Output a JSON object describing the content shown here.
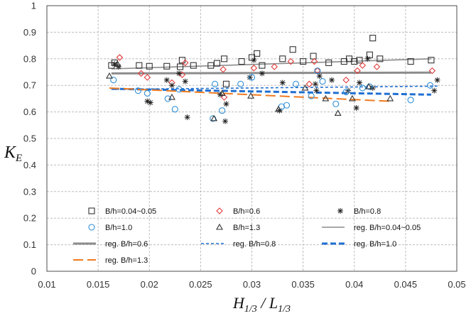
{
  "chart_data": {
    "type": "scatter",
    "xlim": [
      0.01,
      0.05
    ],
    "ylim": [
      0,
      1
    ],
    "xticks": [
      "0.01",
      "0.015",
      "0.02",
      "0.025",
      "0.03",
      "0.035",
      "0.04",
      "0.045",
      "0.05"
    ],
    "yticks": [
      "0",
      "0.1",
      "0.2",
      "0.3",
      "0.4",
      "0.5",
      "0.6",
      "0.7",
      "0.8",
      "0.9",
      "1"
    ],
    "xlabel": {
      "main": "H",
      "sub1": "1/3",
      "mid": " / L",
      "sub2": "1/3"
    },
    "ylabel": {
      "main": "K",
      "sub": "E"
    },
    "grid": true,
    "legend_position": "inside-bottom",
    "series": [
      {
        "name": "B/h=0.04~0.05",
        "marker": "square",
        "color": "#333333",
        "points": [
          [
            0.0163,
            0.775
          ],
          [
            0.0166,
            0.785
          ],
          [
            0.019,
            0.775
          ],
          [
            0.02,
            0.772
          ],
          [
            0.0217,
            0.772
          ],
          [
            0.023,
            0.77
          ],
          [
            0.0232,
            0.795
          ],
          [
            0.0243,
            0.775
          ],
          [
            0.026,
            0.775
          ],
          [
            0.0266,
            0.783
          ],
          [
            0.0273,
            0.8
          ],
          [
            0.0275,
            0.705
          ],
          [
            0.029,
            0.79
          ],
          [
            0.03,
            0.805
          ],
          [
            0.0305,
            0.82
          ],
          [
            0.031,
            0.775
          ],
          [
            0.033,
            0.8
          ],
          [
            0.034,
            0.835
          ],
          [
            0.035,
            0.79
          ],
          [
            0.036,
            0.81
          ],
          [
            0.0375,
            0.785
          ],
          [
            0.039,
            0.79
          ],
          [
            0.0395,
            0.8
          ],
          [
            0.04,
            0.79
          ],
          [
            0.0405,
            0.795
          ],
          [
            0.0415,
            0.815
          ],
          [
            0.0418,
            0.878
          ],
          [
            0.0425,
            0.8
          ],
          [
            0.0455,
            0.79
          ],
          [
            0.0475,
            0.795
          ]
        ]
      },
      {
        "name": "B/h=0.6",
        "marker": "diamond",
        "color": "#e23b3b",
        "points": [
          [
            0.0171,
            0.805
          ],
          [
            0.0192,
            0.745
          ],
          [
            0.0198,
            0.73
          ],
          [
            0.0222,
            0.71
          ],
          [
            0.0232,
            0.74
          ],
          [
            0.0235,
            0.785
          ],
          [
            0.0272,
            0.76
          ],
          [
            0.0273,
            0.655
          ],
          [
            0.0302,
            0.765
          ],
          [
            0.0322,
            0.77
          ],
          [
            0.0338,
            0.79
          ],
          [
            0.0356,
            0.705
          ],
          [
            0.0361,
            0.79
          ],
          [
            0.0364,
            0.755
          ],
          [
            0.0392,
            0.72
          ],
          [
            0.0403,
            0.755
          ],
          [
            0.0408,
            0.775
          ],
          [
            0.0422,
            0.77
          ],
          [
            0.0476,
            0.755
          ]
        ]
      },
      {
        "name": "B/h=0.8",
        "marker": "asterisk",
        "color": "#222222",
        "points": [
          [
            0.0166,
            0.78
          ],
          [
            0.017,
            0.77
          ],
          [
            0.0198,
            0.64
          ],
          [
            0.0201,
            0.635
          ],
          [
            0.0217,
            0.72
          ],
          [
            0.0222,
            0.7
          ],
          [
            0.0229,
            0.745
          ],
          [
            0.0235,
            0.715
          ],
          [
            0.0237,
            0.58
          ],
          [
            0.0269,
            0.665
          ],
          [
            0.0274,
            0.565
          ],
          [
            0.0275,
            0.63
          ],
          [
            0.0298,
            0.73
          ],
          [
            0.0302,
            0.795
          ],
          [
            0.031,
            0.745
          ],
          [
            0.0327,
            0.605
          ],
          [
            0.033,
            0.71
          ],
          [
            0.0362,
            0.705
          ],
          [
            0.0363,
            0.68
          ],
          [
            0.0366,
            0.735
          ],
          [
            0.0378,
            0.72
          ],
          [
            0.0394,
            0.68
          ],
          [
            0.0402,
            0.615
          ],
          [
            0.0405,
            0.71
          ],
          [
            0.0413,
            0.8
          ],
          [
            0.0418,
            0.69
          ],
          [
            0.0478,
            0.68
          ],
          [
            0.0481,
            0.72
          ]
        ]
      },
      {
        "name": "B/h=1.0",
        "marker": "circle",
        "color": "#2f8fd6",
        "points": [
          [
            0.0165,
            0.72
          ],
          [
            0.0189,
            0.68
          ],
          [
            0.0198,
            0.67
          ],
          [
            0.0218,
            0.65
          ],
          [
            0.0225,
            0.61
          ],
          [
            0.0229,
            0.685
          ],
          [
            0.0262,
            0.575
          ],
          [
            0.0264,
            0.705
          ],
          [
            0.0271,
            0.605
          ],
          [
            0.0289,
            0.705
          ],
          [
            0.03,
            0.73
          ],
          [
            0.0329,
            0.62
          ],
          [
            0.0334,
            0.625
          ],
          [
            0.0343,
            0.705
          ],
          [
            0.0358,
            0.66
          ],
          [
            0.0364,
            0.755
          ],
          [
            0.0369,
            0.715
          ],
          [
            0.0382,
            0.63
          ],
          [
            0.0392,
            0.675
          ],
          [
            0.0408,
            0.69
          ],
          [
            0.0415,
            0.695
          ],
          [
            0.0455,
            0.645
          ],
          [
            0.0474,
            0.7
          ]
        ]
      },
      {
        "name": "B/h=1.3",
        "marker": "triangle",
        "color": "#333333",
        "points": [
          [
            0.0161,
            0.735
          ],
          [
            0.0169,
            0.78
          ],
          [
            0.0222,
            0.655
          ],
          [
            0.0263,
            0.575
          ],
          [
            0.0271,
            0.67
          ],
          [
            0.0299,
            0.66
          ],
          [
            0.0326,
            0.61
          ],
          [
            0.0352,
            0.69
          ],
          [
            0.0372,
            0.65
          ],
          [
            0.0384,
            0.595
          ],
          [
            0.0398,
            0.65
          ],
          [
            0.0414,
            0.695
          ],
          [
            0.0435,
            0.65
          ]
        ]
      },
      {
        "name": "reg. B/h=0.04~0.05",
        "type": "line",
        "color": "#8c8c8c",
        "width": 1.6,
        "dash": "",
        "points": [
          [
            0.0163,
            0.762
          ],
          [
            0.0475,
            0.8
          ]
        ]
      },
      {
        "name": "reg. B/h=0.6",
        "type": "line",
        "color": "#8c8c8c",
        "width": 3,
        "dash": "",
        "points": [
          [
            0.0163,
            0.745
          ],
          [
            0.0475,
            0.748
          ]
        ]
      },
      {
        "name": "reg. B/h=0.8",
        "type": "line",
        "color": "#1f6fd1",
        "width": 1.6,
        "dash": "4,3",
        "points": [
          [
            0.0163,
            0.685
          ],
          [
            0.0481,
            0.697
          ]
        ]
      },
      {
        "name": "reg. B/h=1.0",
        "type": "line",
        "color": "#1f6fd1",
        "width": 3,
        "dash": "8,4",
        "points": [
          [
            0.0163,
            0.687
          ],
          [
            0.0475,
            0.665
          ]
        ]
      },
      {
        "name": "reg. B/h=1.3",
        "type": "line",
        "color": "#f07a20",
        "width": 2,
        "dash": "14,6",
        "points": [
          [
            0.0161,
            0.69
          ],
          [
            0.0435,
            0.64
          ]
        ]
      }
    ],
    "legend_order": [
      0,
      1,
      2,
      3,
      4,
      5,
      6,
      7,
      8,
      9
    ]
  }
}
